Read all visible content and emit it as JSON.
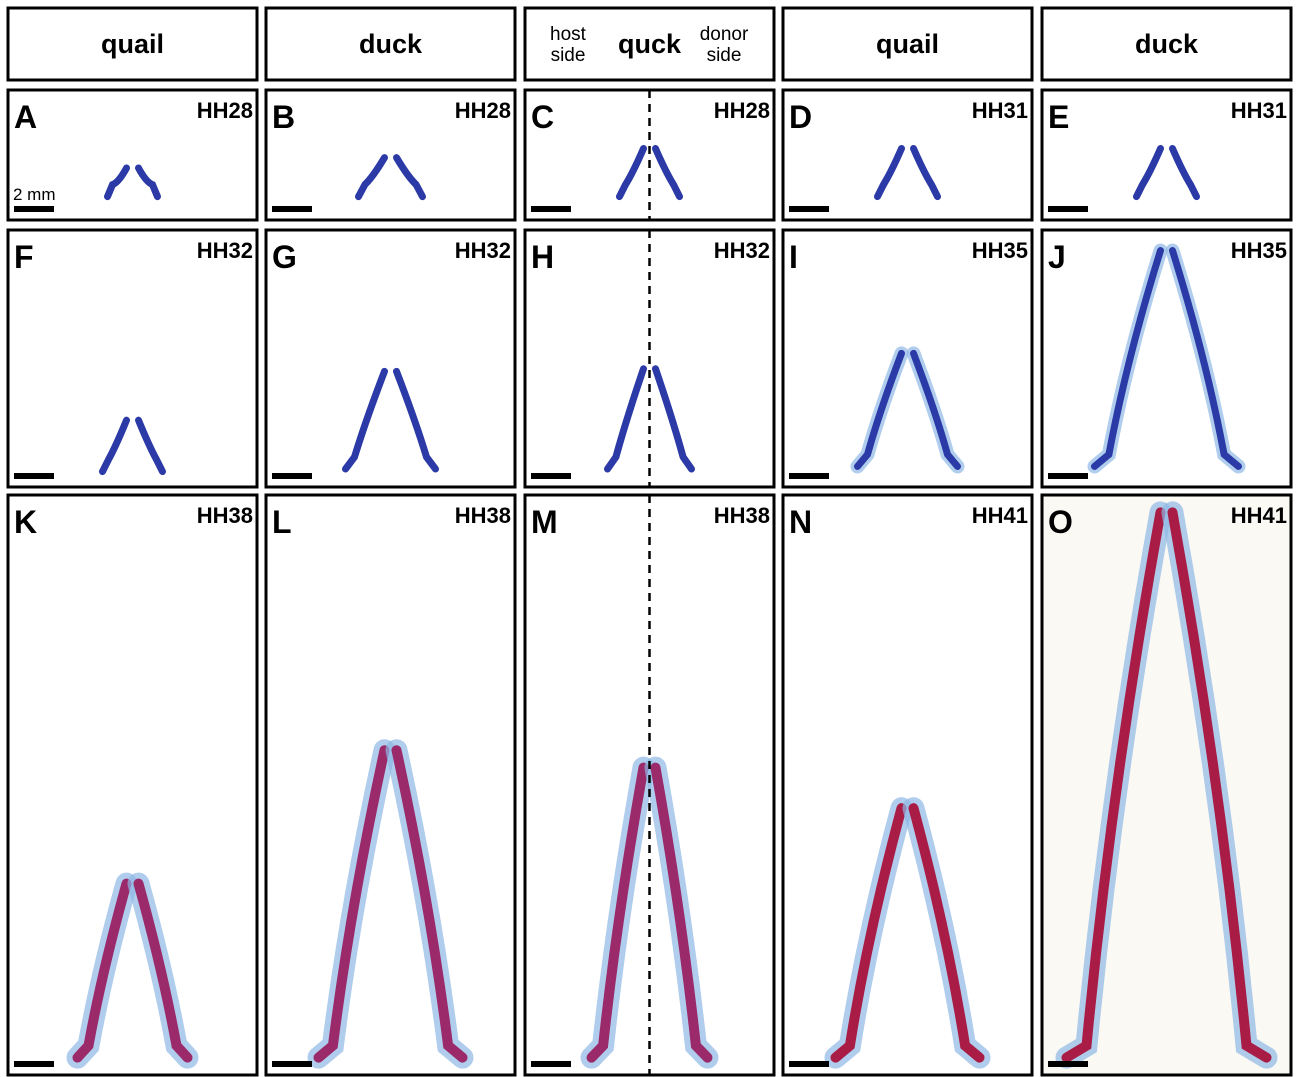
{
  "headers": [
    {
      "label": "quail"
    },
    {
      "label": "duck"
    },
    {
      "label": "quck",
      "left": [
        "host",
        "side"
      ],
      "right": [
        "donor",
        "side"
      ]
    },
    {
      "label": "quail"
    },
    {
      "label": "duck"
    }
  ],
  "panels": [
    [
      {
        "letter": "A",
        "stage": "HH28"
      },
      {
        "letter": "B",
        "stage": "HH28"
      },
      {
        "letter": "C",
        "stage": "HH28"
      },
      {
        "letter": "D",
        "stage": "HH31"
      },
      {
        "letter": "E",
        "stage": "HH31"
      }
    ],
    [
      {
        "letter": "F",
        "stage": "HH32"
      },
      {
        "letter": "G",
        "stage": "HH32"
      },
      {
        "letter": "H",
        "stage": "HH32"
      },
      {
        "letter": "I",
        "stage": "HH35"
      },
      {
        "letter": "J",
        "stage": "HH35"
      }
    ],
    [
      {
        "letter": "K",
        "stage": "HH38"
      },
      {
        "letter": "L",
        "stage": "HH38"
      },
      {
        "letter": "M",
        "stage": "HH38"
      },
      {
        "letter": "N",
        "stage": "HH41"
      },
      {
        "letter": "O",
        "stage": "HH41"
      }
    ]
  ],
  "scale_label": "2 mm"
}
